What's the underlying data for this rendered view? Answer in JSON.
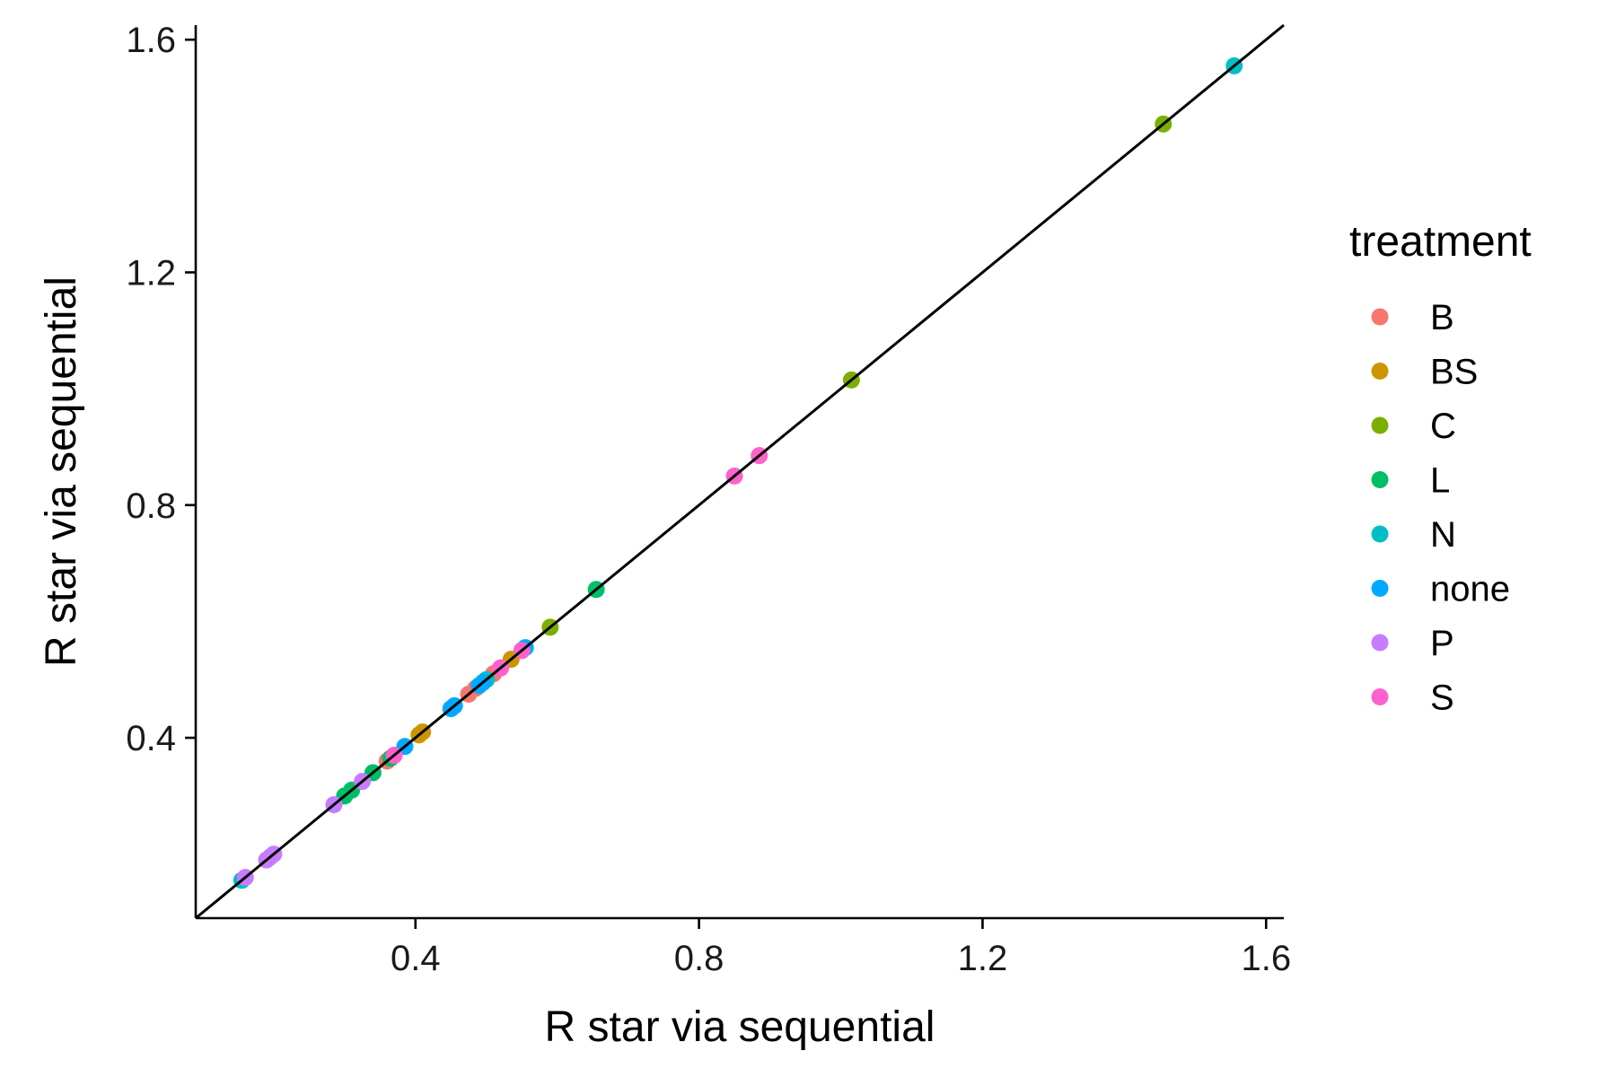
{
  "chart_data": {
    "type": "scatter",
    "title": "",
    "xlabel": "R star via sequential",
    "ylabel": "R star via sequential",
    "xlim": [
      0.09,
      1.625
    ],
    "ylim": [
      0.09,
      1.625
    ],
    "xticks": [
      0.4,
      0.8,
      1.2,
      1.6
    ],
    "yticks": [
      0.4,
      0.8,
      1.2,
      1.6
    ],
    "xtick_labels": [
      "0.4",
      "0.8",
      "1.2",
      "1.6"
    ],
    "ytick_labels": [
      "0.4",
      "0.8",
      "1.2",
      "1.6"
    ],
    "grid": false,
    "reference_line": "y = x",
    "legend": {
      "title": "treatment",
      "position": "right"
    },
    "series": [
      {
        "name": "B",
        "color": "#F8766D",
        "points": [
          [
            0.475,
            0.475
          ],
          [
            0.485,
            0.485
          ],
          [
            0.36,
            0.36
          ],
          [
            0.51,
            0.51
          ]
        ]
      },
      {
        "name": "BS",
        "color": "#CD9600",
        "points": [
          [
            0.41,
            0.41
          ],
          [
            0.535,
            0.535
          ],
          [
            0.52,
            0.52
          ],
          [
            0.405,
            0.405
          ]
        ]
      },
      {
        "name": "C",
        "color": "#7CAE00",
        "points": [
          [
            1.455,
            1.455
          ],
          [
            1.015,
            1.015
          ],
          [
            0.59,
            0.59
          ]
        ]
      },
      {
        "name": "L",
        "color": "#00BE67",
        "points": [
          [
            0.655,
            0.655
          ],
          [
            0.34,
            0.34
          ],
          [
            0.31,
            0.31
          ],
          [
            0.365,
            0.365
          ],
          [
            0.3,
            0.3
          ]
        ]
      },
      {
        "name": "N",
        "color": "#00BFC4",
        "points": [
          [
            1.555,
            1.555
          ],
          [
            0.155,
            0.155
          ],
          [
            0.5,
            0.5
          ]
        ]
      },
      {
        "name": "none",
        "color": "#00A9FF",
        "points": [
          [
            0.555,
            0.555
          ],
          [
            0.45,
            0.45
          ],
          [
            0.455,
            0.455
          ],
          [
            0.495,
            0.495
          ],
          [
            0.385,
            0.385
          ],
          [
            0.49,
            0.49
          ]
        ]
      },
      {
        "name": "P",
        "color": "#C77CFF",
        "points": [
          [
            0.285,
            0.285
          ],
          [
            0.325,
            0.325
          ],
          [
            0.19,
            0.19
          ],
          [
            0.2,
            0.2
          ],
          [
            0.16,
            0.16
          ],
          [
            0.195,
            0.195
          ]
        ]
      },
      {
        "name": "S",
        "color": "#FF61CC",
        "points": [
          [
            0.885,
            0.885
          ],
          [
            0.85,
            0.85
          ],
          [
            0.55,
            0.55
          ],
          [
            0.37,
            0.37
          ],
          [
            0.52,
            0.52
          ]
        ]
      }
    ]
  }
}
